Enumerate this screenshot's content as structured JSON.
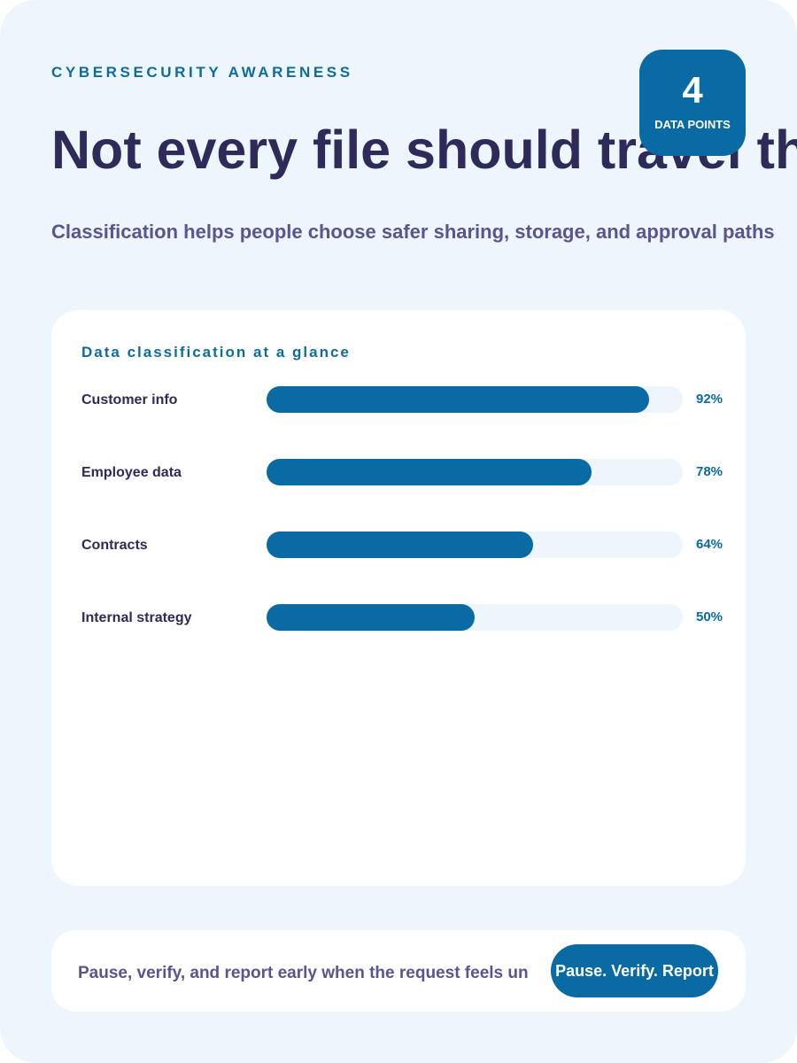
{
  "eyebrow": "CYBERSECURITY AWARENESS",
  "title": "Not every file should travel th",
  "subtitle": "Classification helps people choose safer sharing, storage, and approval paths",
  "badge": {
    "number": "4",
    "label": "DATA POINTS"
  },
  "chart_data": {
    "type": "bar",
    "orientation": "horizontal",
    "title": "Data classification at a glance",
    "categories": [
      "Customer info",
      "Employee data",
      "Contracts",
      "Internal strategy"
    ],
    "values": [
      92,
      78,
      64,
      50
    ],
    "value_labels": [
      "92%",
      "78%",
      "64%",
      "50%"
    ],
    "xlim": [
      0,
      100
    ],
    "color": "#0a6aa3",
    "track_color": "#eef6fd"
  },
  "footer": {
    "text": "Pause, verify, and report early when the request feels un",
    "button": "Pause. Verify. Report"
  }
}
